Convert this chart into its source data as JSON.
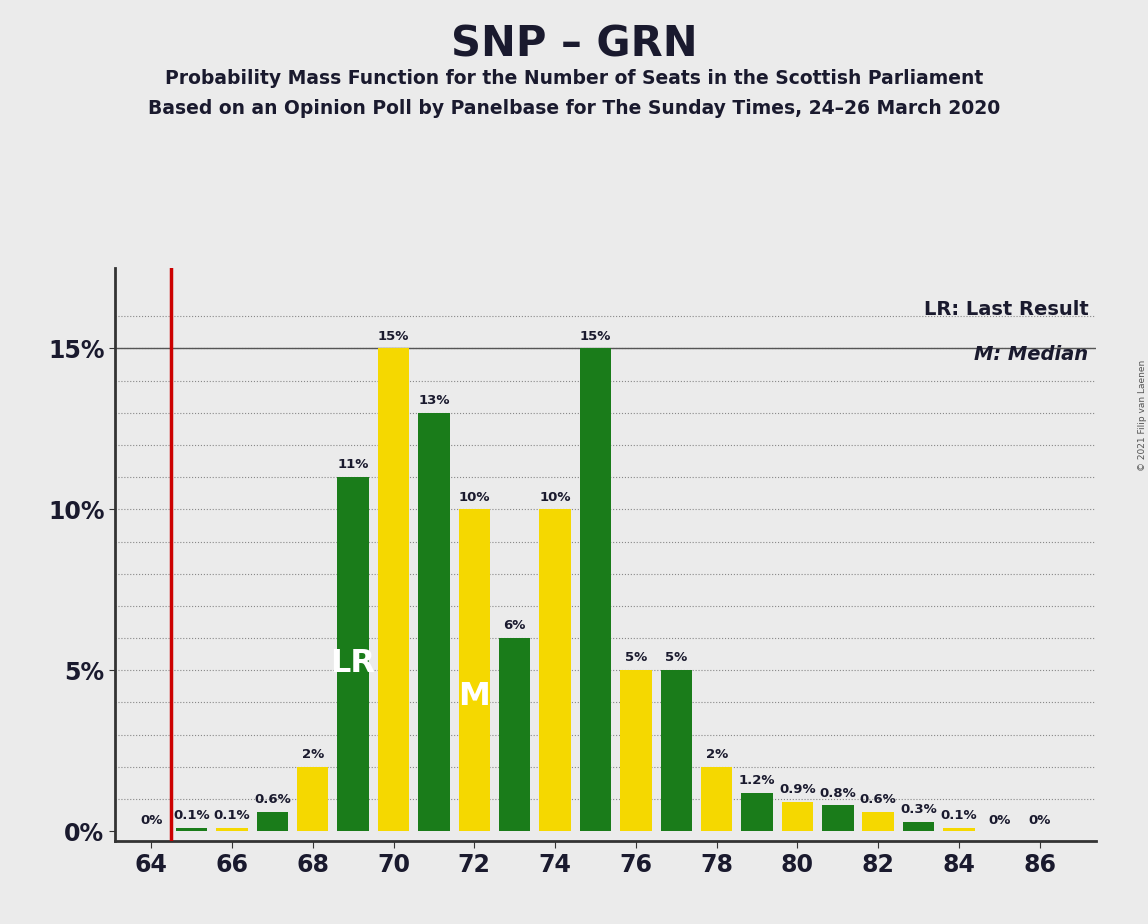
{
  "title": "SNP – GRN",
  "subtitle1": "Probability Mass Function for the Number of Seats in the Scottish Parliament",
  "subtitle2": "Based on an Opinion Poll by Panelbase for The Sunday Times, 24–26 March 2020",
  "copyright": "© 2021 Filip van Laenen",
  "lr_label": "LR: Last Result",
  "m_label": "M: Median",
  "background_color": "#ebebeb",
  "green_color": "#1a7c1a",
  "yellow_color": "#f5d800",
  "bar_width": 0.78,
  "lr_line_x": 64.5,
  "lr_text_seat": 69,
  "m_text_seat": 72,
  "bars": [
    {
      "seat": 64,
      "color": "green",
      "value": 0.0,
      "label": "0%"
    },
    {
      "seat": 65,
      "color": "green",
      "value": 0.1,
      "label": "0.1%"
    },
    {
      "seat": 66,
      "color": "yellow",
      "value": 0.1,
      "label": "0.1%"
    },
    {
      "seat": 67,
      "color": "green",
      "value": 0.6,
      "label": "0.6%"
    },
    {
      "seat": 68,
      "color": "yellow",
      "value": 2.0,
      "label": "2%"
    },
    {
      "seat": 69,
      "color": "green",
      "value": 11.0,
      "label": "11%"
    },
    {
      "seat": 70,
      "color": "yellow",
      "value": 15.0,
      "label": "15%"
    },
    {
      "seat": 71,
      "color": "green",
      "value": 13.0,
      "label": "13%"
    },
    {
      "seat": 72,
      "color": "yellow",
      "value": 10.0,
      "label": "10%"
    },
    {
      "seat": 73,
      "color": "green",
      "value": 6.0,
      "label": "6%"
    },
    {
      "seat": 74,
      "color": "yellow",
      "value": 10.0,
      "label": "10%"
    },
    {
      "seat": 75,
      "color": "green",
      "value": 15.0,
      "label": "15%"
    },
    {
      "seat": 76,
      "color": "yellow",
      "value": 5.0,
      "label": "5%"
    },
    {
      "seat": 77,
      "color": "green",
      "value": 5.0,
      "label": "5%"
    },
    {
      "seat": 78,
      "color": "yellow",
      "value": 2.0,
      "label": "2%"
    },
    {
      "seat": 79,
      "color": "green",
      "value": 1.2,
      "label": "1.2%"
    },
    {
      "seat": 80,
      "color": "yellow",
      "value": 0.9,
      "label": "0.9%"
    },
    {
      "seat": 81,
      "color": "green",
      "value": 0.8,
      "label": "0.8%"
    },
    {
      "seat": 82,
      "color": "yellow",
      "value": 0.6,
      "label": "0.6%"
    },
    {
      "seat": 83,
      "color": "green",
      "value": 0.3,
      "label": "0.3%"
    },
    {
      "seat": 84,
      "color": "yellow",
      "value": 0.1,
      "label": "0.1%"
    },
    {
      "seat": 85,
      "color": "green",
      "value": 0.0,
      "label": "0%"
    },
    {
      "seat": 86,
      "color": "yellow",
      "value": 0.0,
      "label": "0%"
    }
  ],
  "xlim": [
    63.1,
    87.4
  ],
  "ylim": [
    -0.3,
    17.5
  ],
  "yticks": [
    0,
    5,
    10,
    15
  ],
  "xticks": [
    64,
    66,
    68,
    70,
    72,
    74,
    76,
    78,
    80,
    82,
    84,
    86
  ]
}
